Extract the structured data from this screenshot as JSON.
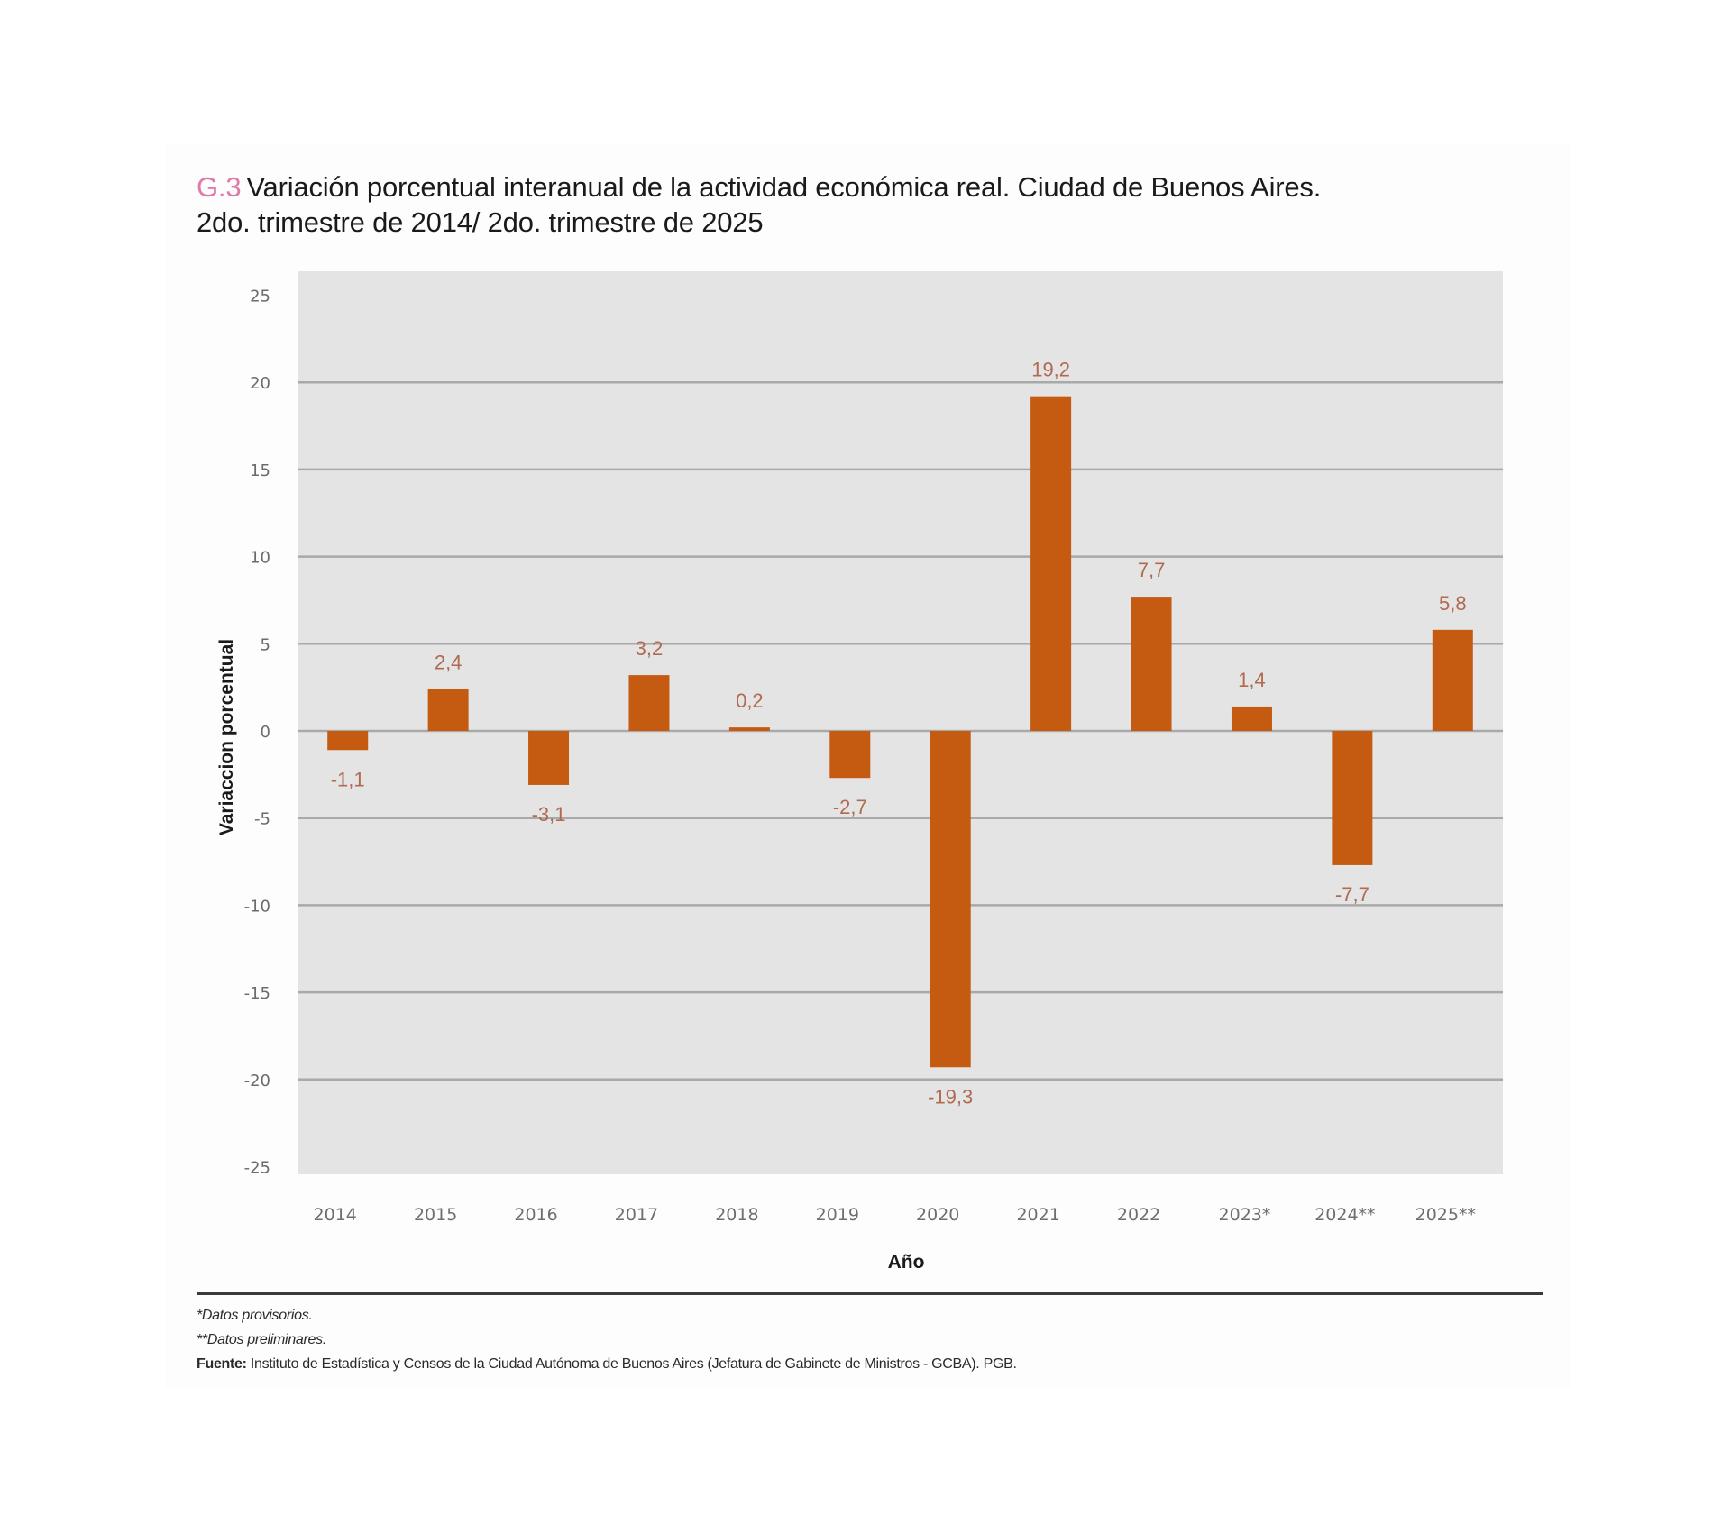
{
  "header": {
    "code": "G.3",
    "title_line1": "Variación porcentual interanual de la actividad económica real. Ciudad de Buenos Aires.",
    "title_line2": "2do. trimestre de 2014/ 2do. trimestre de 2025"
  },
  "chart_data": {
    "type": "bar",
    "title": "Variación porcentual interanual de la actividad económica real. Ciudad de Buenos Aires. 2do. trimestre de 2014/ 2do. trimestre de 2025",
    "xlabel": "Año",
    "ylabel": "Variaccion porcentual",
    "categories": [
      "2014",
      "2015",
      "2016",
      "2017",
      "2018",
      "2019",
      "2020",
      "2021",
      "2022",
      "2023*",
      "2024**",
      "2025**"
    ],
    "values": [
      -1.1,
      2.4,
      -3.1,
      3.2,
      0.2,
      -2.7,
      -19.3,
      19.2,
      7.7,
      1.4,
      -7.7,
      5.8
    ],
    "data_labels": [
      "-1,1",
      "2,4",
      "-3,1",
      "3,2",
      "0,2",
      "-2,7",
      "-19,3",
      "19,2",
      "7,7",
      "1,4",
      "-7,7",
      "5,8"
    ],
    "ylim": [
      -25,
      25
    ],
    "yticks": [
      25,
      20,
      15,
      10,
      5,
      0,
      -5,
      -10,
      -15,
      -20,
      -25
    ],
    "grid": true,
    "legend": "none",
    "colors": {
      "bar": "#c55a11",
      "data_label": "#b06a50",
      "plot_background": "#e4e4e4",
      "gridline": "#a9a9a9",
      "code_accent": "#e07aa8"
    }
  },
  "footer": {
    "note1": "*Datos provisorios.",
    "note2": "**Datos preliminares.",
    "source_label": "Fuente:",
    "source_text": " Instituto de Estadística y Censos de la Ciudad Autónoma de Buenos Aires (Jefatura de Gabinete de Ministros - GCBA). PGB."
  }
}
